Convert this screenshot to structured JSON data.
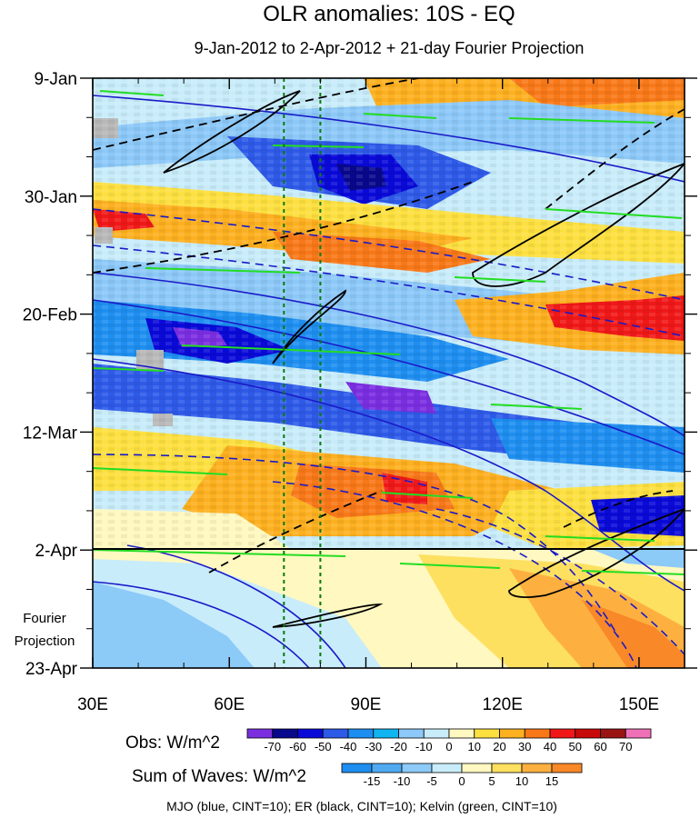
{
  "chart_data": {
    "type": "heatmap",
    "title": "OLR anomalies: 10S - EQ",
    "subtitle": "9-Jan-2012 to 2-Apr-2012 + 21-day Fourier Projection",
    "x_axis": {
      "ticks": [
        "30E",
        "60E",
        "90E",
        "120E",
        "150E"
      ],
      "tick_values": [
        30,
        60,
        90,
        120,
        150
      ],
      "range": [
        30,
        160
      ]
    },
    "y_axis": {
      "ticks": [
        "9-Jan",
        "30-Jan",
        "20-Feb",
        "12-Mar",
        "2-Apr",
        "23-Apr"
      ],
      "tick_days": [
        0,
        21,
        42,
        63,
        84,
        105
      ],
      "range_days": [
        0,
        105
      ]
    },
    "projection_label_line1": "Fourier",
    "projection_label_line2": "Projection",
    "projection_start_day": 84,
    "reference_longitudes": [
      72,
      80
    ],
    "obs_colorbar": {
      "label": "Obs: W/m^2",
      "levels": [
        "-70",
        "-60",
        "-50",
        "-40",
        "-30",
        "-20",
        "-10",
        "0",
        "10",
        "20",
        "30",
        "40",
        "50",
        "60",
        "70"
      ],
      "colors": [
        "#7a2ee0",
        "#08088c",
        "#0a0ad8",
        "#2e5ae8",
        "#1e8ef0",
        "#10b4f0",
        "#8cc8f8",
        "#c8ecfa",
        "#fff8c0",
        "#fde040",
        "#fdb020",
        "#f87818",
        "#f01818",
        "#c80a0a",
        "#9a1414",
        "#f070b8"
      ]
    },
    "waves_colorbar": {
      "label": "Sum of Waves: W/m^2",
      "levels": [
        "-15",
        "-10",
        "-5",
        "0",
        "5",
        "10",
        "15"
      ],
      "colors": [
        "#1e8ef0",
        "#50aaf2",
        "#8ccaf8",
        "#c8ecfa",
        "#fff8c0",
        "#fde060",
        "#fdb040",
        "#f88828"
      ]
    },
    "footnote": "MJO (blue, CINT=10); ER (black, CINT=10); Kelvin (green, CINT=10)",
    "contour_colors": {
      "mjo": "#1a1ac8",
      "er": "#000000",
      "kelvin": "#22dd22"
    },
    "missing_color": "#b8b8b8"
  }
}
